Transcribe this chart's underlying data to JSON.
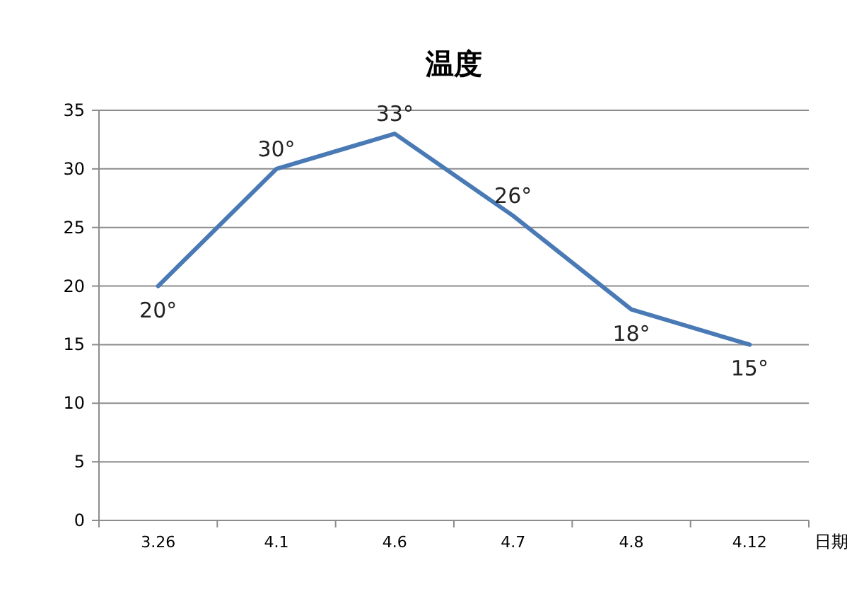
{
  "chart_data": {
    "type": "line",
    "title": "温度",
    "xlabel": "日期",
    "categories": [
      "3.26",
      "4.1",
      "4.6",
      "4.7",
      "4.8",
      "4.12"
    ],
    "series": [
      {
        "color": "#4a7ab5",
        "values": [
          20,
          30,
          33,
          26,
          18,
          15
        ],
        "value_labels": [
          "20°",
          "30°",
          "33°",
          "26°",
          "18°",
          "15°"
        ]
      }
    ],
    "ylim": [
      0,
      35
    ],
    "yticks": [
      0,
      5,
      10,
      15,
      20,
      25,
      30,
      35
    ],
    "grid": "y",
    "marker": "none",
    "line_style": "solid"
  }
}
